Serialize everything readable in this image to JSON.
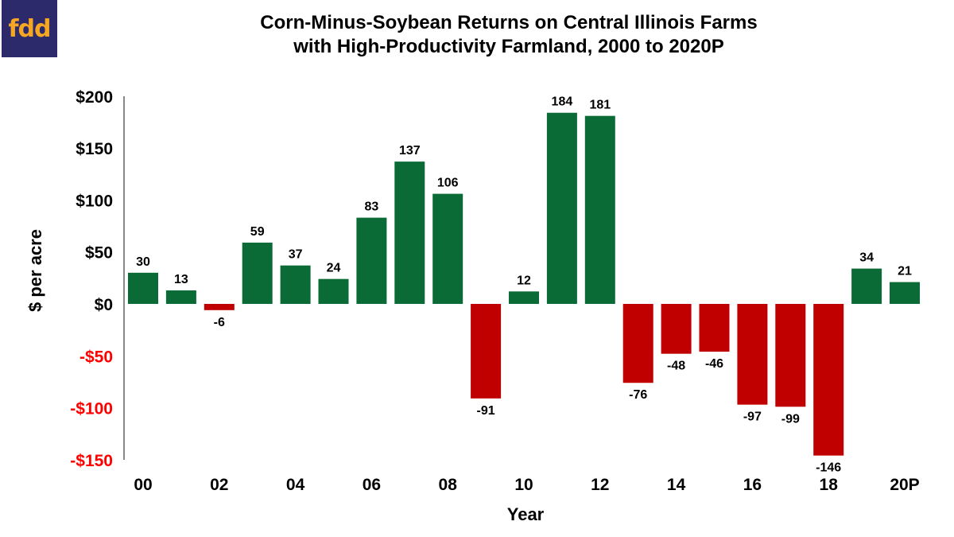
{
  "logo": {
    "text": "fdd"
  },
  "chart_data": {
    "type": "bar",
    "title": [
      "Corn-Minus-Soybean Returns on Central Illinois Farms",
      "with High-Productivity Farmland, 2000 to 2020P"
    ],
    "xlabel": "Year",
    "ylabel": "$ per acre",
    "categories": [
      "00",
      "01",
      "02",
      "03",
      "04",
      "05",
      "06",
      "07",
      "08",
      "09",
      "10",
      "11",
      "12",
      "13",
      "14",
      "15",
      "16",
      "17",
      "18",
      "19",
      "20P"
    ],
    "x_tick_labels": [
      "00",
      "02",
      "04",
      "06",
      "08",
      "10",
      "12",
      "14",
      "16",
      "18",
      "20P"
    ],
    "values": [
      30,
      13,
      -6,
      59,
      37,
      24,
      83,
      137,
      106,
      -91,
      12,
      184,
      181,
      -76,
      -48,
      -46,
      -97,
      -99,
      -146,
      34,
      21
    ],
    "ylim": [
      -150,
      200
    ],
    "y_ticks": [
      {
        "value": 200,
        "label": "$200"
      },
      {
        "value": 150,
        "label": "$150"
      },
      {
        "value": 100,
        "label": "$100"
      },
      {
        "value": 50,
        "label": "$50"
      },
      {
        "value": 0,
        "label": "$0"
      },
      {
        "value": -50,
        "label": "-$50"
      },
      {
        "value": -100,
        "label": "-$100"
      },
      {
        "value": -150,
        "label": "-$150"
      }
    ],
    "grid": false,
    "legend": "none",
    "colors": {
      "positive": "#0b6b36",
      "negative": "#c00000",
      "negative_tick": "#ff0000"
    }
  }
}
